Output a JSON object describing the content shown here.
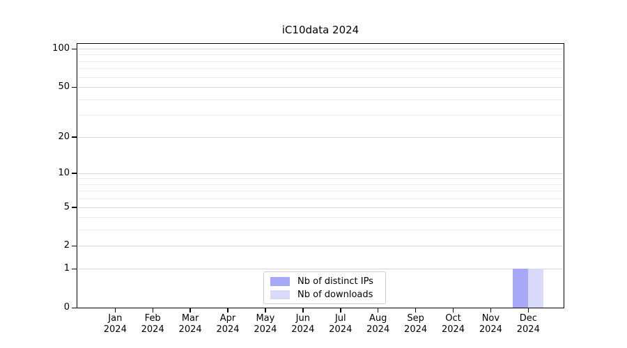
{
  "chart_data": {
    "type": "bar",
    "title": "iC10data 2024",
    "categories": [
      "Jan",
      "Feb",
      "Mar",
      "Apr",
      "May",
      "Jun",
      "Jul",
      "Aug",
      "Sep",
      "Oct",
      "Nov",
      "Dec"
    ],
    "year_suffix": "2024",
    "series": [
      {
        "name": "Nb of distinct IPs",
        "color": "#a8a8f8",
        "values": [
          0,
          0,
          0,
          0,
          0,
          0,
          0,
          0,
          0,
          0,
          0,
          1
        ]
      },
      {
        "name": "Nb of downloads",
        "color": "#d9d9fa",
        "values": [
          0,
          0,
          0,
          0,
          0,
          0,
          0,
          0,
          0,
          0,
          0,
          1
        ]
      }
    ],
    "xlabel": "",
    "ylabel": "",
    "yscale": "log1p",
    "ylim": [
      0,
      110
    ],
    "yticks": [
      0,
      1,
      2,
      5,
      10,
      20,
      50,
      100
    ],
    "yticks_minor": [
      3,
      4,
      6,
      7,
      8,
      9,
      30,
      40,
      60,
      70,
      80,
      90
    ],
    "grid": {
      "axis": "y",
      "major_color": "#d4d4d4",
      "minor_color": "#ececec"
    },
    "legend": {
      "position": "lower center"
    },
    "spine_color": "#000000",
    "background": "#ffffff"
  }
}
